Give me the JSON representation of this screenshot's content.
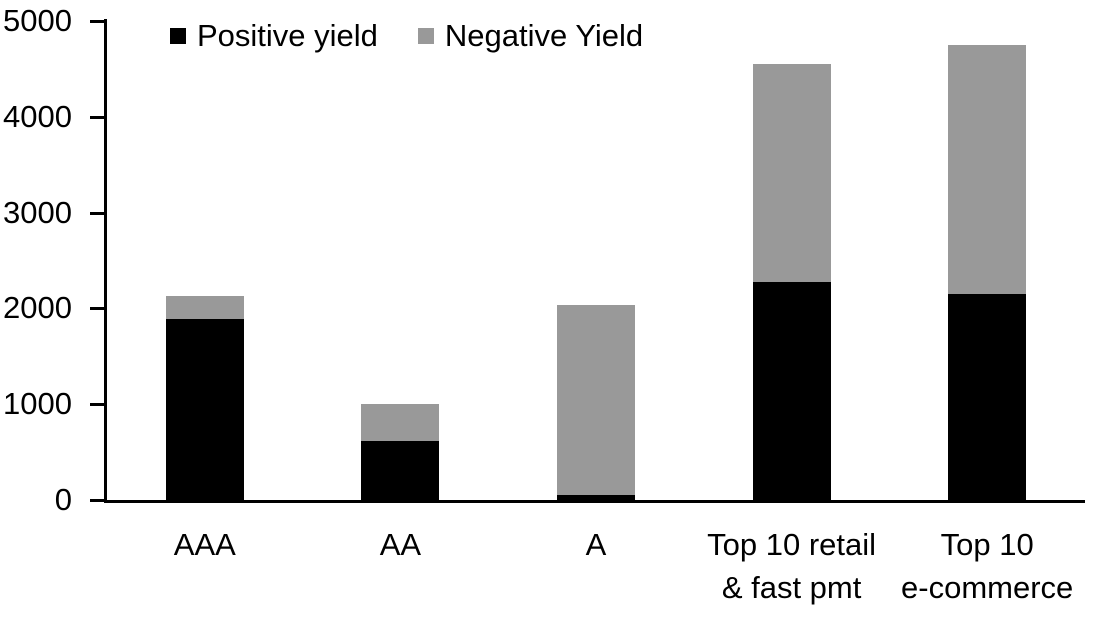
{
  "chart_data": {
    "type": "bar",
    "stacked": true,
    "title": "",
    "xlabel": "",
    "ylabel": "",
    "categories": [
      "AAA",
      "AA",
      "A",
      "Top 10 retail & fast pmt",
      "Top 10 e-commerce"
    ],
    "category_label_lines": [
      [
        "AAA"
      ],
      [
        "AA"
      ],
      [
        "A"
      ],
      [
        "Top 10 retail",
        "& fast pmt"
      ],
      [
        "Top 10",
        "e-commerce"
      ]
    ],
    "series": [
      {
        "name": "Positive yield",
        "color": "#000000",
        "values": [
          1890,
          620,
          50,
          2280,
          2150
        ]
      },
      {
        "name": "Negative Yield",
        "color": "#999999",
        "values": [
          235,
          385,
          1985,
          2275,
          2600
        ]
      }
    ],
    "stack_totals": [
      2125,
      1005,
      2035,
      4555,
      4750
    ],
    "ylim": [
      0,
      5000
    ],
    "yticks": [
      0,
      1000,
      2000,
      3000,
      4000,
      5000
    ],
    "grid": false,
    "legend_position": "top-left",
    "axis_color": "#000000",
    "background_color": "#ffffff"
  }
}
